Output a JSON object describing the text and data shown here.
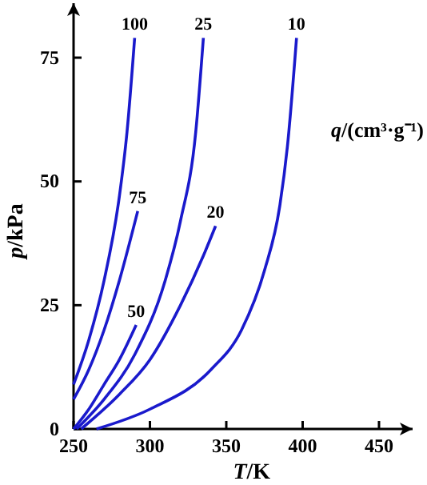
{
  "chart_data": {
    "type": "line",
    "xlabel": "T/K",
    "ylabel": "p/kPa",
    "xlim": [
      250,
      472
    ],
    "ylim": [
      0,
      86
    ],
    "xticks": [
      250,
      300,
      350,
      400,
      450
    ],
    "yticks": [
      0,
      25,
      50,
      75
    ],
    "grid": false,
    "legend": false,
    "marker": "none",
    "line_style": "solid",
    "annotations": [
      "q/(cm³·g⁻¹)"
    ],
    "series": [
      {
        "name": "100",
        "color": "#1a1acc",
        "x": [
          250,
          260,
          270,
          280,
          285,
          290
        ],
        "values": [
          9,
          18,
          30,
          47,
          60,
          79
        ]
      },
      {
        "name": "75",
        "color": "#1a1acc",
        "x": [
          250,
          260,
          270,
          280,
          292
        ],
        "values": [
          6,
          12,
          20,
          30,
          44
        ]
      },
      {
        "name": "50",
        "color": "#1a1acc",
        "x": [
          250,
          260,
          270,
          280,
          291
        ],
        "values": [
          0,
          4,
          9,
          14,
          21
        ]
      },
      {
        "name": "25",
        "color": "#1a1acc",
        "x": [
          252,
          270,
          290,
          310,
          320,
          330,
          335
        ],
        "values": [
          0,
          6,
          15,
          30,
          42,
          60,
          79
        ]
      },
      {
        "name": "20",
        "color": "#1a1acc",
        "x": [
          255,
          280,
          300,
          320,
          335,
          343
        ],
        "values": [
          0,
          7,
          14,
          25,
          35,
          41
        ]
      },
      {
        "name": "10",
        "color": "#1a1acc",
        "x": [
          265,
          300,
          340,
          360,
          375,
          385,
          390,
          396
        ],
        "values": [
          0,
          4,
          12,
          20,
          32,
          45,
          57,
          79
        ]
      }
    ]
  }
}
